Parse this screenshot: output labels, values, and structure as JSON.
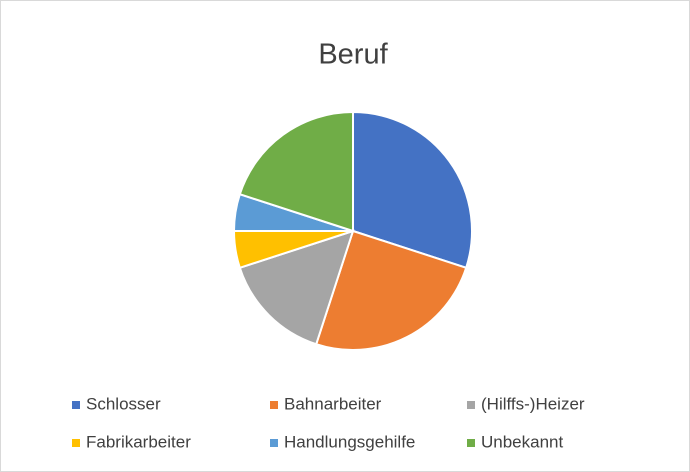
{
  "chart_data": {
    "type": "pie",
    "title": "Beruf",
    "categories": [
      "Schlosser",
      "Bahnarbeiter",
      "(Hilffs-)Heizer",
      "Fabrikarbeiter",
      "Handlungsgehilfe",
      "Unbekannt"
    ],
    "values": [
      30,
      25,
      15,
      5,
      5,
      20
    ],
    "colors": [
      "#4472c4",
      "#ed7d31",
      "#a5a5a5",
      "#ffc000",
      "#5b9bd5",
      "#70ad47"
    ],
    "legend": "bottom"
  }
}
